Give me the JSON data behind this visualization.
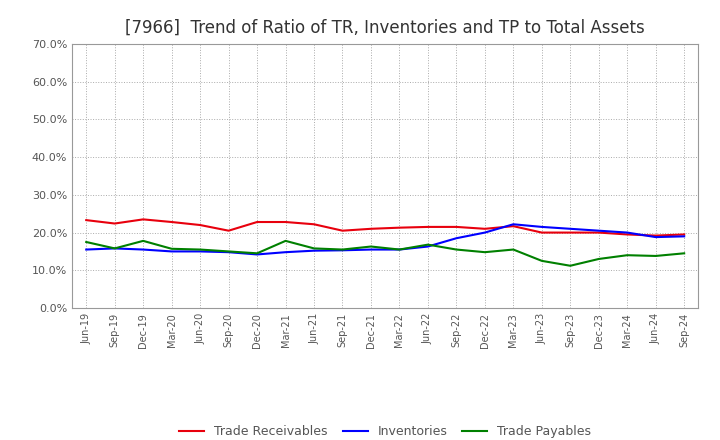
{
  "title": "[7966]  Trend of Ratio of TR, Inventories and TP to Total Assets",
  "x_labels": [
    "Jun-19",
    "Sep-19",
    "Dec-19",
    "Mar-20",
    "Jun-20",
    "Sep-20",
    "Dec-20",
    "Mar-21",
    "Jun-21",
    "Sep-21",
    "Dec-21",
    "Mar-22",
    "Jun-22",
    "Sep-22",
    "Dec-22",
    "Mar-23",
    "Jun-23",
    "Sep-23",
    "Dec-23",
    "Mar-24",
    "Jun-24",
    "Sep-24"
  ],
  "trade_receivables": [
    0.233,
    0.224,
    0.235,
    0.228,
    0.22,
    0.205,
    0.228,
    0.228,
    0.222,
    0.205,
    0.21,
    0.213,
    0.215,
    0.215,
    0.21,
    0.217,
    0.2,
    0.2,
    0.2,
    0.195,
    0.192,
    0.195
  ],
  "inventories": [
    0.155,
    0.158,
    0.155,
    0.15,
    0.15,
    0.148,
    0.142,
    0.148,
    0.152,
    0.153,
    0.155,
    0.155,
    0.163,
    0.185,
    0.2,
    0.222,
    0.215,
    0.21,
    0.205,
    0.2,
    0.188,
    0.19
  ],
  "trade_payables": [
    0.175,
    0.158,
    0.178,
    0.157,
    0.155,
    0.15,
    0.145,
    0.178,
    0.158,
    0.155,
    0.163,
    0.155,
    0.168,
    0.155,
    0.148,
    0.155,
    0.125,
    0.112,
    0.13,
    0.14,
    0.138,
    0.145
  ],
  "tr_color": "#e8000d",
  "inv_color": "#0000ff",
  "tp_color": "#008000",
  "ylim": [
    0.0,
    0.7
  ],
  "yticks": [
    0.0,
    0.1,
    0.2,
    0.3,
    0.4,
    0.5,
    0.6,
    0.7
  ],
  "background_color": "#ffffff",
  "grid_color": "#aaaaaa",
  "title_fontsize": 12,
  "title_color": "#333333",
  "tick_color": "#555555",
  "legend_labels": [
    "Trade Receivables",
    "Inventories",
    "Trade Payables"
  ]
}
